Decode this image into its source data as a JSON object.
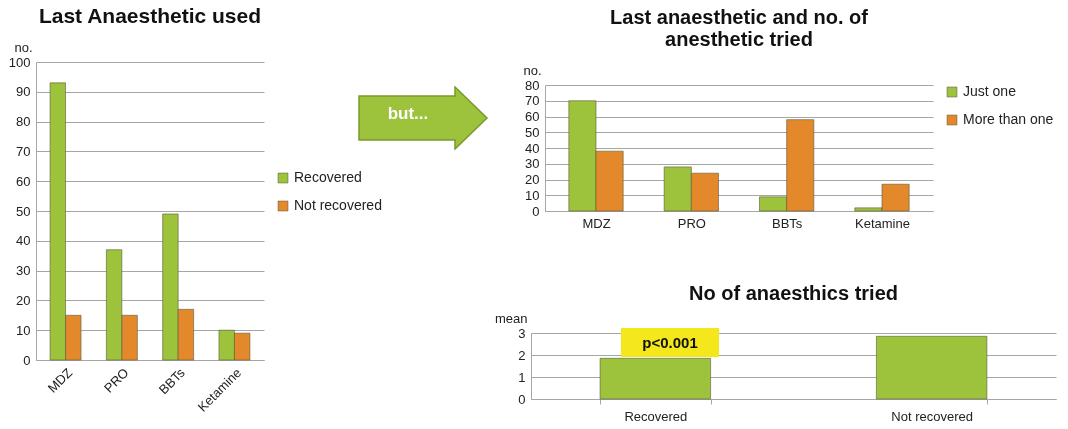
{
  "chart_data": [
    {
      "type": "bar",
      "title": "Last Anaesthetic used",
      "ylabel": "no.",
      "categories": [
        "MDZ",
        "PRO",
        "BBTs",
        "Ketamine"
      ],
      "series": [
        {
          "name": "Recovered",
          "color": "#9dc23b",
          "values": [
            93,
            37,
            49,
            10
          ]
        },
        {
          "name": "Not recovered",
          "color": "#e3892b",
          "values": [
            15,
            15,
            17,
            9
          ]
        }
      ],
      "ylim": [
        0,
        100
      ],
      "yticks": [
        0,
        10,
        20,
        30,
        40,
        50,
        60,
        70,
        80,
        90,
        100
      ],
      "grid": "y",
      "legend": "right"
    },
    {
      "type": "bar",
      "title": "Last anaesthetic and no. of anesthetic tried",
      "ylabel": "no.",
      "categories": [
        "MDZ",
        "PRO",
        "BBTs",
        "Ketamine"
      ],
      "series": [
        {
          "name": "Just one",
          "color": "#9dc23b",
          "values": [
            70,
            28,
            9,
            2
          ]
        },
        {
          "name": "More than one",
          "color": "#e3892b",
          "values": [
            38,
            24,
            58,
            17
          ]
        }
      ],
      "ylim": [
        0,
        80
      ],
      "yticks": [
        0,
        10,
        20,
        30,
        40,
        50,
        60,
        70,
        80
      ],
      "grid": "y",
      "legend": "top right",
      "annotations": [
        "but..."
      ]
    },
    {
      "type": "bar",
      "title": "No of anaesthics tried",
      "ylabel": "mean",
      "categories": [
        "Recovered",
        "Not recovered"
      ],
      "values": [
        1.85,
        2.85
      ],
      "color": "#9dc23b",
      "ylim": [
        0,
        3
      ],
      "yticks": [
        0,
        1,
        2,
        3
      ],
      "grid": "y",
      "annotations": [
        "p<0.001"
      ]
    }
  ]
}
